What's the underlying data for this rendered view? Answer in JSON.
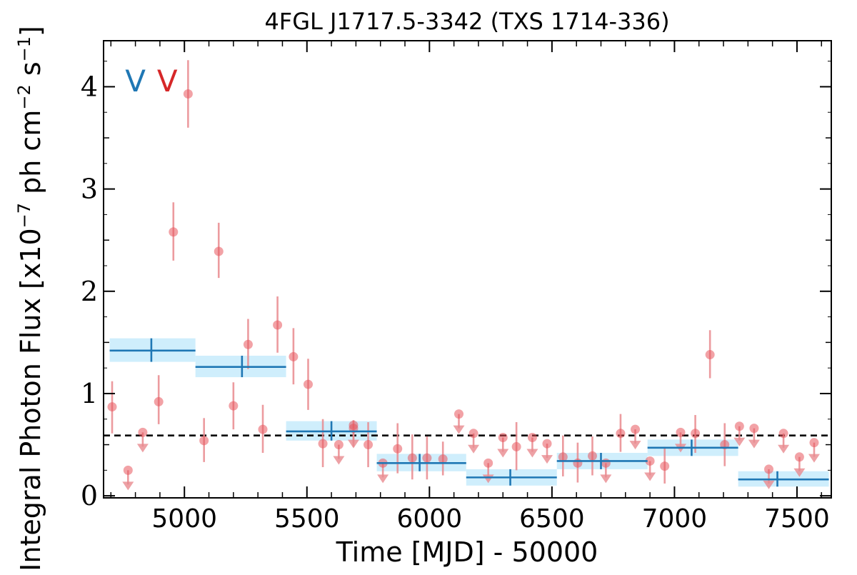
{
  "chart_data": {
    "type": "scatter",
    "title": "4FGL J1717.5-3342 (TXS 1714-336)",
    "xlabel": "Time [MJD] - 50000",
    "ylabel_main": "Integral Photon Flux [x10",
    "ylabel_exp1": "−7",
    "ylabel_mid": " ph cm",
    "ylabel_exp2": "−2",
    "ylabel_end": " s",
    "ylabel_exp3": "−1",
    "ylabel_close": "]",
    "xlim": [
      4670,
      7640
    ],
    "ylim": [
      -0.02,
      4.45
    ],
    "x_ticks": [
      5000,
      5500,
      6000,
      6500,
      7000,
      7500
    ],
    "x_tick_labels": [
      "5000",
      "5500",
      "6000",
      "6500",
      "7000",
      "7500"
    ],
    "y_ticks": [
      0,
      1,
      2,
      3,
      4
    ],
    "y_tick_labels": [
      "0",
      "1",
      "2",
      "3",
      "4"
    ],
    "grid": false,
    "reference_line": {
      "y": 0.59,
      "style": "dashed",
      "color": "#000000"
    },
    "colors": {
      "points": "#e8555c",
      "errorbars": "#e98a8e",
      "blocks_line": "#1f77b4",
      "blocks_band": "#bfe8fb",
      "marker_blue": "#1f77b4",
      "marker_red": "#d62728"
    },
    "event_markers": [
      {
        "label": "V",
        "x": 4800,
        "color": "#1f77b4"
      },
      {
        "label": "V",
        "x": 4930,
        "color": "#d62728"
      }
    ],
    "series": [
      {
        "kind": "points",
        "data": [
          {
            "x": 4705,
            "y": 0.87,
            "lo": 0.61,
            "hi": 1.12
          },
          {
            "x": 4895,
            "y": 0.92,
            "lo": 0.7,
            "hi": 1.18
          },
          {
            "x": 4955,
            "y": 2.58,
            "lo": 2.3,
            "hi": 2.87
          },
          {
            "x": 5015,
            "y": 3.93,
            "lo": 3.6,
            "hi": 4.26
          },
          {
            "x": 5080,
            "y": 0.54,
            "lo": 0.33,
            "hi": 0.76
          },
          {
            "x": 5140,
            "y": 2.39,
            "lo": 2.13,
            "hi": 2.67
          },
          {
            "x": 5200,
            "y": 0.88,
            "lo": 0.65,
            "hi": 1.11
          },
          {
            "x": 5260,
            "y": 1.48,
            "lo": 1.24,
            "hi": 1.73
          },
          {
            "x": 5320,
            "y": 0.65,
            "lo": 0.42,
            "hi": 0.89
          },
          {
            "x": 5380,
            "y": 1.67,
            "lo": 1.4,
            "hi": 1.95
          },
          {
            "x": 5445,
            "y": 1.36,
            "lo": 1.09,
            "hi": 1.64
          },
          {
            "x": 5505,
            "y": 1.09,
            "lo": 0.84,
            "hi": 1.34
          },
          {
            "x": 5565,
            "y": 0.51,
            "lo": 0.28,
            "hi": 0.75
          },
          {
            "x": 5690,
            "y": 0.69,
            "lo": 0.48,
            "hi": 0.74
          },
          {
            "x": 5750,
            "y": 0.5,
            "lo": 0.28,
            "hi": 0.72
          },
          {
            "x": 5870,
            "y": 0.46,
            "lo": 0.22,
            "hi": 0.71
          },
          {
            "x": 5930,
            "y": 0.37,
            "lo": 0.16,
            "hi": 0.6
          },
          {
            "x": 5990,
            "y": 0.37,
            "lo": 0.16,
            "hi": 0.58
          },
          {
            "x": 6055,
            "y": 0.36,
            "lo": 0.2,
            "hi": 0.53
          },
          {
            "x": 6355,
            "y": 0.48,
            "lo": 0.25,
            "hi": 0.72
          },
          {
            "x": 6545,
            "y": 0.38,
            "lo": 0.19,
            "hi": 0.59
          },
          {
            "x": 6605,
            "y": 0.32,
            "lo": 0.13,
            "hi": 0.52
          },
          {
            "x": 6665,
            "y": 0.39,
            "lo": 0.2,
            "hi": 0.58
          },
          {
            "x": 6780,
            "y": 0.61,
            "lo": 0.43,
            "hi": 0.8
          },
          {
            "x": 6960,
            "y": 0.29,
            "lo": 0.12,
            "hi": 0.48
          },
          {
            "x": 7085,
            "y": 0.61,
            "lo": 0.42,
            "hi": 0.79
          },
          {
            "x": 7145,
            "y": 1.38,
            "lo": 1.15,
            "hi": 1.62
          },
          {
            "x": 7205,
            "y": 0.5,
            "lo": 0.29,
            "hi": 0.71
          }
        ]
      },
      {
        "kind": "upper_limits",
        "data": [
          {
            "x": 4770,
            "y": 0.25
          },
          {
            "x": 4830,
            "y": 0.62
          },
          {
            "x": 5630,
            "y": 0.5
          },
          {
            "x": 5690,
            "y": 0.66
          },
          {
            "x": 5810,
            "y": 0.32
          },
          {
            "x": 6120,
            "y": 0.8
          },
          {
            "x": 6180,
            "y": 0.61
          },
          {
            "x": 6240,
            "y": 0.32
          },
          {
            "x": 6300,
            "y": 0.57
          },
          {
            "x": 6420,
            "y": 0.57
          },
          {
            "x": 6480,
            "y": 0.51
          },
          {
            "x": 6720,
            "y": 0.32
          },
          {
            "x": 6840,
            "y": 0.65
          },
          {
            "x": 6900,
            "y": 0.34
          },
          {
            "x": 7025,
            "y": 0.62
          },
          {
            "x": 7265,
            "y": 0.68
          },
          {
            "x": 7325,
            "y": 0.66
          },
          {
            "x": 7385,
            "y": 0.26
          },
          {
            "x": 7445,
            "y": 0.61
          },
          {
            "x": 7510,
            "y": 0.38
          },
          {
            "x": 7570,
            "y": 0.52
          }
        ]
      },
      {
        "kind": "bayesian_blocks",
        "data": [
          {
            "x0": 4695,
            "x1": 5045,
            "xc": 4865,
            "y": 1.42,
            "lo": 1.31,
            "hi": 1.54
          },
          {
            "x0": 5045,
            "x1": 5415,
            "xc": 5235,
            "y": 1.26,
            "lo": 1.16,
            "hi": 1.37
          },
          {
            "x0": 5415,
            "x1": 5785,
            "xc": 5600,
            "y": 0.63,
            "lo": 0.54,
            "hi": 0.73
          },
          {
            "x0": 5785,
            "x1": 6150,
            "xc": 5960,
            "y": 0.32,
            "lo": 0.24,
            "hi": 0.41
          },
          {
            "x0": 6150,
            "x1": 6520,
            "xc": 6330,
            "y": 0.18,
            "lo": 0.1,
            "hi": 0.26
          },
          {
            "x0": 6520,
            "x1": 6890,
            "xc": 6700,
            "y": 0.34,
            "lo": 0.26,
            "hi": 0.42
          },
          {
            "x0": 6890,
            "x1": 7260,
            "xc": 7070,
            "y": 0.47,
            "lo": 0.39,
            "hi": 0.55
          },
          {
            "x0": 7260,
            "x1": 7630,
            "xc": 7420,
            "y": 0.16,
            "lo": 0.09,
            "hi": 0.24
          }
        ]
      }
    ]
  }
}
